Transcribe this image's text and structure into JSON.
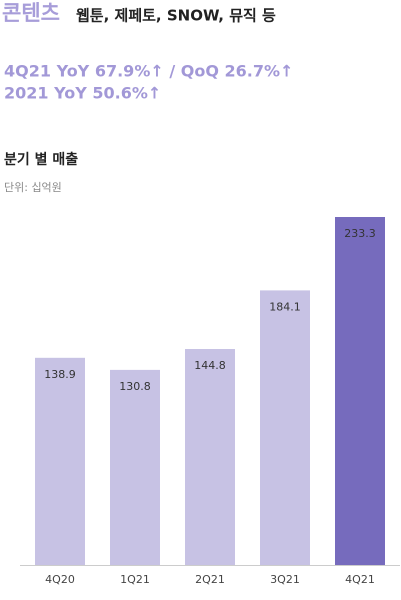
{
  "header": {
    "title": "콘텐츠",
    "subtitle": "웹툰, 제페토, SNOW, 뮤직 등",
    "highlights": [
      "4Q21 YoY 67.9%↑ / QoQ 26.7%↑",
      "2021 YoY 50.6%↑"
    ]
  },
  "chart_data": {
    "type": "bar",
    "title": "분기 별 매출",
    "unit": "단위: 십억원",
    "categories": [
      "4Q20",
      "1Q21",
      "2Q21",
      "3Q21",
      "4Q21"
    ],
    "values": [
      138.9,
      130.8,
      144.8,
      184.1,
      233.3
    ],
    "colors": [
      "#c7c2e4",
      "#c7c2e4",
      "#c7c2e4",
      "#c7c2e4",
      "#766bbd"
    ]
  }
}
